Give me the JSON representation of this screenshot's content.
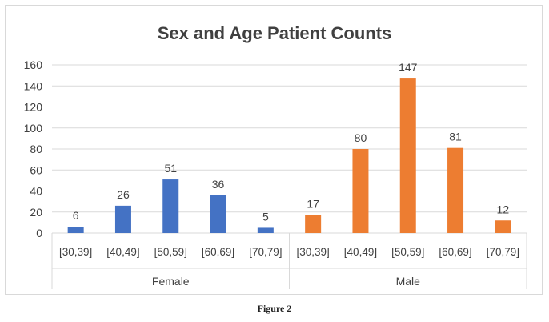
{
  "caption": "Figure 2",
  "colors": {
    "female": "#4472c4",
    "male": "#ed7d31",
    "grid": "#d9d9d9",
    "text": "#404040"
  },
  "chart_data": {
    "type": "bar",
    "title": "Sex and Age Patient Counts",
    "xlabel": "",
    "ylabel": "",
    "ylim": [
      0,
      160
    ],
    "yticks": [
      0,
      20,
      40,
      60,
      80,
      100,
      120,
      140,
      160
    ],
    "grid": true,
    "legend": "none",
    "groups": [
      {
        "name": "Female",
        "color": "#4472c4",
        "categories": [
          "[30,39]",
          "[40,49]",
          "[50,59]",
          "[60,69]",
          "[70,79]"
        ],
        "values": [
          6,
          26,
          51,
          36,
          5
        ]
      },
      {
        "name": "Male",
        "color": "#ed7d31",
        "categories": [
          "[30,39]",
          "[40,49]",
          "[50,59]",
          "[60,69]",
          "[70,79]"
        ],
        "values": [
          17,
          80,
          147,
          81,
          12
        ]
      }
    ]
  }
}
